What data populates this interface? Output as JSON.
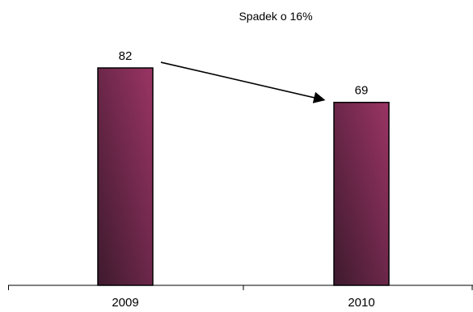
{
  "chart_data": {
    "type": "bar",
    "categories": [
      "2009",
      "2010"
    ],
    "values": [
      82,
      69
    ],
    "data_labels": [
      "82",
      "69"
    ],
    "title": "",
    "xlabel": "",
    "ylabel": "",
    "ylim": [
      0,
      100
    ],
    "grid": false,
    "legend": "none",
    "annotation": {
      "text": "Spadek o 16%",
      "arrow_from_category": "2009",
      "arrow_to_category": "2010"
    },
    "colors": {
      "bar_fill_light": "#9a3464",
      "bar_fill_dark": "#3e1a2e",
      "bar_stroke": "#000000",
      "axis": "#000000"
    }
  }
}
